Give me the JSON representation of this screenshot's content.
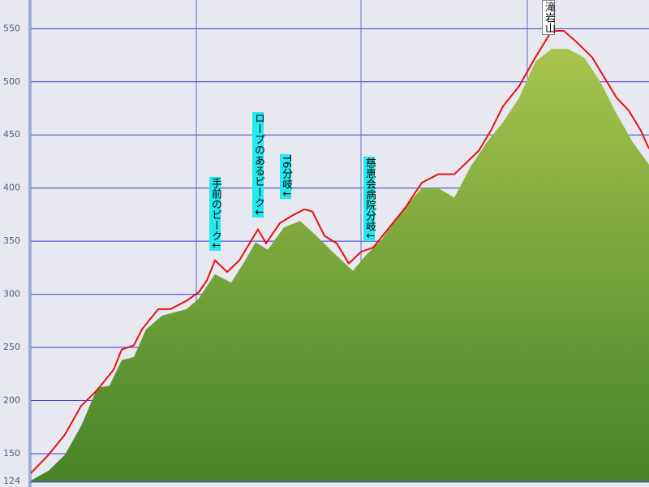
{
  "chart_data": {
    "type": "area",
    "xlim": [
      0,
      762
    ],
    "ylim": [
      124,
      577
    ],
    "yticks": [
      124,
      150,
      200,
      250,
      300,
      350,
      400,
      450,
      500,
      550
    ],
    "grid": true,
    "series": [
      {
        "kind": "area",
        "color": "#6f9e38",
        "x": [
          0,
          22,
          42,
          62,
          82,
          97,
          112,
          127,
          142,
          162,
          192,
          207,
          227,
          247,
          262,
          277,
          292,
          312,
          332,
          352,
          372,
          397,
          412,
          432,
          457,
          482,
          502,
          522,
          542,
          562,
          582,
          602,
          622,
          642,
          662,
          682,
          702,
          722,
          742,
          762
        ],
        "values": [
          124.8,
          134,
          149,
          176,
          212,
          214,
          238,
          241,
          267,
          280,
          286,
          296,
          319,
          311,
          329,
          349,
          342,
          363,
          369,
          355,
          340,
          322,
          336,
          351,
          378,
          400,
          400,
          391,
          420,
          443,
          462,
          485,
          519,
          531,
          531,
          523,
          500,
          470,
          443,
          422
        ]
      },
      {
        "kind": "line",
        "color": "#e81010",
        "x": [
          0,
          22,
          42,
          62,
          82,
          102,
          112,
          127,
          137,
          157,
          172,
          192,
          207,
          217,
          227,
          242,
          257,
          272,
          280,
          290,
          307,
          322,
          337,
          347,
          362,
          377,
          392,
          407,
          422,
          442,
          462,
          482,
          502,
          522,
          537,
          552,
          567,
          582,
          602,
          622,
          642,
          657,
          672,
          692,
          707,
          722,
          737,
          752,
          762
        ],
        "values": [
          131.6,
          149,
          168,
          195,
          210,
          229,
          248,
          252,
          267,
          286,
          286,
          294,
          302,
          313,
          332,
          321,
          332,
          351,
          361,
          348,
          367,
          374,
          380,
          378,
          355,
          348,
          329,
          340,
          344,
          363,
          382,
          405,
          413,
          413,
          424,
          435,
          454,
          477,
          496,
          523,
          548,
          548,
          538,
          523,
          504,
          485,
          473,
          454,
          437
        ]
      }
    ],
    "annotations": [
      "手前のピーク↓",
      "ロープのあるピーク↓",
      "T6分岐↓",
      "慈恵会病院分岐↓",
      "滝岩山"
    ]
  }
}
